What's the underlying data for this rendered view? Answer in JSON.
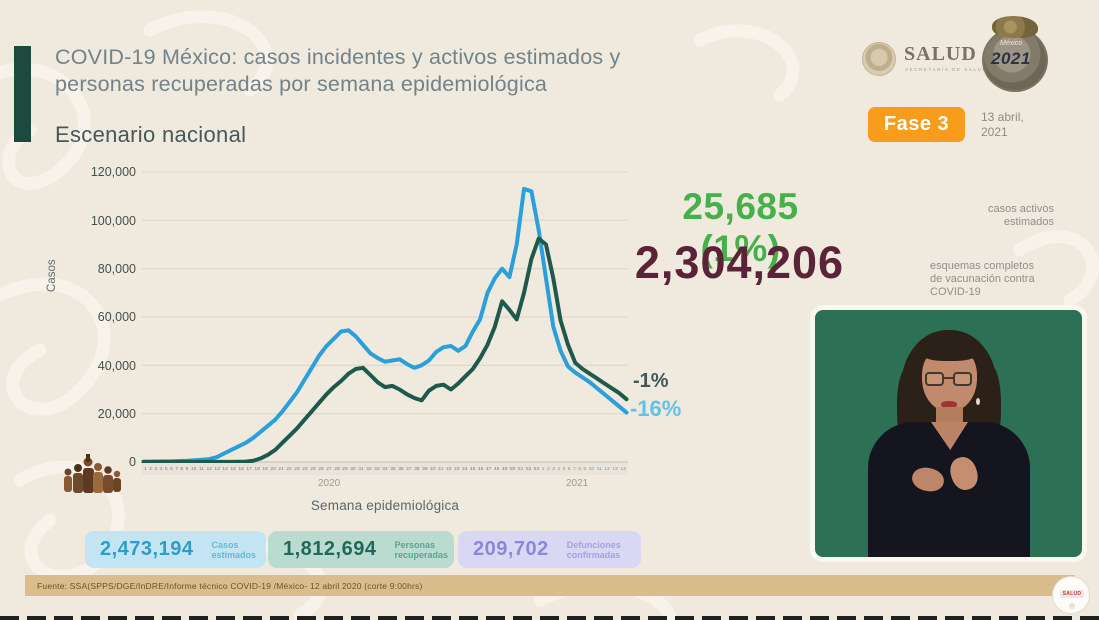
{
  "header": {
    "title_line1": "COVID-19 México: casos incidentes y activos estimados y",
    "title_line2": "personas recuperadas por semana epidemiológica",
    "subtitle": "Escenario nacional",
    "salud_logo": {
      "text": "SALUD",
      "subtext": "SECRETARÍA DE SALUD"
    },
    "logo_2021": {
      "country": "México",
      "year": "2021",
      "foot": "Año de la Independencia"
    },
    "fase_badge": "Fase 3",
    "date_line1": "13 abril,",
    "date_line2": "2021"
  },
  "chart_data": {
    "type": "line",
    "title": "COVID-19 México: casos incidentes y activos estimados y personas recuperadas por semana epidemiológica — Escenario nacional",
    "xlabel": "Semana epidemiológica",
    "ylabel": "Casos",
    "ylim": [
      0,
      120000
    ],
    "grid": true,
    "legend_position": "none",
    "yticks": [
      "120,000",
      "100,000",
      "80,000",
      "60,000",
      "40,000",
      "20,000",
      "0"
    ],
    "x_year_labels": [
      "2020",
      "2021"
    ],
    "week_numbers_2020": [
      1,
      2,
      3,
      4,
      5,
      6,
      7,
      8,
      9,
      10,
      11,
      12,
      13,
      14,
      15,
      16,
      17,
      18,
      19,
      20,
      21,
      22,
      23,
      24,
      25,
      26,
      27,
      28,
      29,
      30,
      31,
      32,
      33,
      34,
      35,
      36,
      37,
      38,
      39,
      40,
      41,
      42,
      43,
      44,
      45,
      46,
      47,
      48,
      49,
      50,
      51,
      52,
      53
    ],
    "week_numbers_2021": [
      1,
      2,
      3,
      4,
      5,
      6,
      7,
      8,
      9,
      10,
      11,
      12,
      13,
      14
    ],
    "series": [
      {
        "name": "Casos incidentes estimados (línea azul)",
        "color": "#2b9fd9",
        "end_label": "-16%",
        "end_label_color": "#62c2e8",
        "values": [
          100,
          150,
          200,
          250,
          300,
          400,
          500,
          700,
          900,
          1200,
          2000,
          3500,
          5000,
          6500,
          8000,
          10000,
          12500,
          15000,
          17500,
          21000,
          25000,
          29000,
          34000,
          39000,
          44000,
          48000,
          51000,
          54000,
          54500,
          52000,
          48500,
          45000,
          43000,
          41500,
          42000,
          42500,
          40500,
          39000,
          40000,
          42000,
          45500,
          47500,
          48000,
          46000,
          48000,
          54000,
          59000,
          70000,
          76000,
          80000,
          76500,
          90000,
          113000,
          112000,
          96000,
          76000,
          56000,
          46000,
          39500,
          37000,
          35000,
          33000,
          30500,
          28000,
          25500,
          23000,
          20500
        ]
      },
      {
        "name": "Personas recuperadas (línea verde)",
        "color": "#1d5a4c",
        "end_label": "-1%",
        "end_label_color": "#41585c",
        "values": [
          50,
          50,
          50,
          50,
          50,
          50,
          50,
          50,
          50,
          50,
          50,
          50,
          50,
          80,
          150,
          500,
          1500,
          3000,
          5000,
          8000,
          11000,
          14000,
          17500,
          21000,
          24500,
          28000,
          31000,
          33500,
          36500,
          38500,
          39000,
          36000,
          33000,
          31000,
          31500,
          30000,
          28000,
          26500,
          25500,
          29500,
          31500,
          32000,
          30000,
          32500,
          35500,
          38500,
          43000,
          48500,
          56000,
          66500,
          63000,
          59000,
          70000,
          84000,
          92500,
          90000,
          76000,
          58500,
          48500,
          41000,
          38500,
          36500,
          34500,
          32500,
          30500,
          28500,
          26000
        ]
      }
    ]
  },
  "highlights": {
    "active_cases": {
      "value": "25,685 (1%)",
      "color": "#46b14b",
      "label_line1": "casos activos",
      "label_line2": "estimados"
    },
    "vaccination": {
      "value": "2,304,206",
      "color": "#5b2338",
      "label_line1": "esquemas completos",
      "label_line2": "de vacunación contra",
      "label_line3": "COVID-19"
    }
  },
  "stats": [
    {
      "value": "2,473,194",
      "label_line1": "Casos",
      "label_line2": "estimados"
    },
    {
      "value": "1,812,694",
      "label_line1": "Personas",
      "label_line2": "recuperadas"
    },
    {
      "value": "209,702",
      "label_line1": "Defunciones",
      "label_line2": "confirmadas"
    }
  ],
  "footer": {
    "source": "Fuente: SSA(SPPS/DGE/InDRE/Informe técnico COVID-19 /México- 12 abril 2020 (corte 9:00hrs)",
    "seal_text": "SALUD"
  },
  "colors": {
    "accent_bar": "#1d4a3e",
    "fase_orange": "#f89c1c",
    "background": "#f0e9dd",
    "footer_band": "#d9bd8d",
    "video_background": "#2c7156"
  }
}
